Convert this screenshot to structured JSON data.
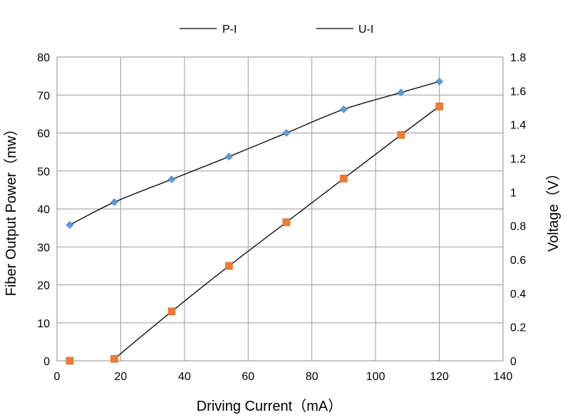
{
  "chart_data": {
    "type": "scatter",
    "title": "",
    "xlabel": "Driving Current（mA）",
    "ylabel": "Fiber Output Power（mw）",
    "y2label": "Voltage（V）",
    "xlim": [
      0,
      140
    ],
    "ylim": [
      0,
      80
    ],
    "y2lim": [
      0,
      1.8
    ],
    "x_ticks": [
      "0",
      "20",
      "40",
      "60",
      "80",
      "100",
      "120",
      "140"
    ],
    "y_ticks": [
      "0",
      "10",
      "20",
      "30",
      "40",
      "50",
      "60",
      "70",
      "80"
    ],
    "y2_ticks": [
      "0",
      "0.2",
      "0.4",
      "0.6",
      "0.8",
      "1",
      "1.2",
      "1.4",
      "1.6",
      "1.8"
    ],
    "grid": true,
    "legend_position": "top",
    "series": [
      {
        "name": "P-I",
        "axis": "left",
        "marker": "square",
        "color": "#ED7D31",
        "line_color": "#000000",
        "x": [
          4,
          18,
          36,
          54,
          72,
          90,
          108,
          120
        ],
        "y": [
          0,
          0.5,
          13,
          25,
          36.5,
          48,
          59.5,
          67
        ]
      },
      {
        "name": "U-I",
        "axis": "right",
        "marker": "diamond",
        "color": "#5B9BD5",
        "line_color": "#000000",
        "x": [
          4,
          18,
          36,
          54,
          72,
          90,
          108,
          120
        ],
        "y": [
          0.805,
          0.94,
          1.075,
          1.21,
          1.35,
          1.49,
          1.59,
          1.655
        ]
      }
    ]
  }
}
